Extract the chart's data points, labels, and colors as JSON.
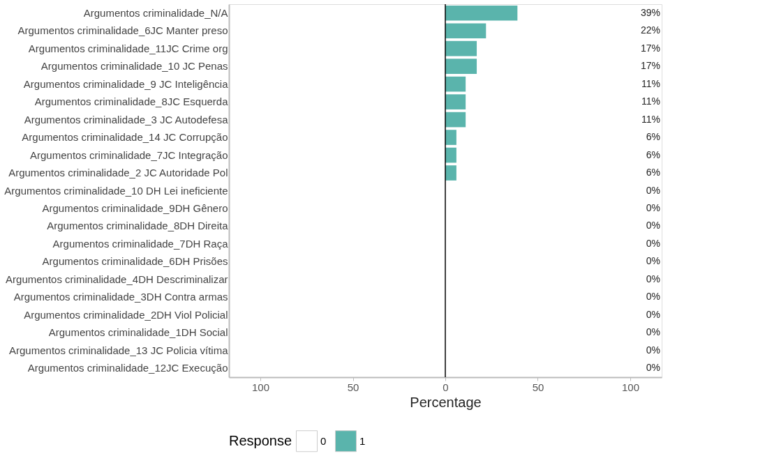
{
  "chart_data": {
    "type": "bar",
    "orientation": "horizontal",
    "xlabel": "Percentage",
    "legend_title": "Response",
    "legend": "bottom",
    "grid": false,
    "categories": [
      "Argumentos criminalidade_N/A",
      "Argumentos criminalidade_6JC Manter preso",
      "Argumentos criminalidade_11JC Crime org",
      "Argumentos criminalidade_10 JC Penas",
      "Argumentos criminalidade_9 JC Inteligência",
      "Argumentos criminalidade_8JC Esquerda",
      "Argumentos criminalidade_3 JC Autodefesa",
      "Argumentos criminalidade_14 JC Corrupção",
      "Argumentos criminalidade_7JC Integração",
      "Argumentos criminalidade_2 JC Autoridade Pol",
      "Argumentos criminalidade_10 DH Lei ineficiente",
      "Argumentos criminalidade_9DH Gênero",
      "Argumentos criminalidade_8DH Direita",
      "Argumentos criminalidade_7DH Raça",
      "Argumentos criminalidade_6DH Prisões",
      "Argumentos criminalidade_4DH Descriminalizar",
      "Argumentos criminalidade_3DH Contra armas",
      "Argumentos criminalidade_2DH Viol Policial",
      "Argumentos criminalidade_1DH Social",
      "Argumentos criminalidade_13 JC Policia vítima",
      "Argumentos criminalidade_12JC Execução"
    ],
    "series": [
      {
        "name": "0",
        "color": "#ffffff",
        "values": [
          null,
          null,
          null,
          null,
          null,
          null,
          null,
          null,
          null,
          null,
          null,
          null,
          null,
          null,
          null,
          null,
          null,
          null,
          null,
          null,
          null
        ]
      },
      {
        "name": "1",
        "color": "#5ab4ac",
        "values": [
          39,
          22,
          17,
          17,
          11,
          11,
          11,
          6,
          6,
          6,
          0,
          0,
          0,
          0,
          0,
          0,
          0,
          0,
          0,
          0,
          0
        ],
        "value_labels": [
          "39%",
          "22%",
          "17%",
          "17%",
          "11%",
          "11%",
          "11%",
          "6%",
          "6%",
          "6%",
          "0%",
          "0%",
          "0%",
          "0%",
          "0%",
          "0%",
          "0%",
          "0%",
          "0%",
          "0%",
          "0%"
        ]
      }
    ],
    "xlim": [
      -117,
      117
    ],
    "xticks": [
      {
        "value": -100,
        "label": "100"
      },
      {
        "value": -50,
        "label": "50"
      },
      0,
      50,
      100
    ],
    "ref_lines": [
      {
        "axis": "x",
        "value": 0,
        "color": "#000000"
      }
    ]
  }
}
